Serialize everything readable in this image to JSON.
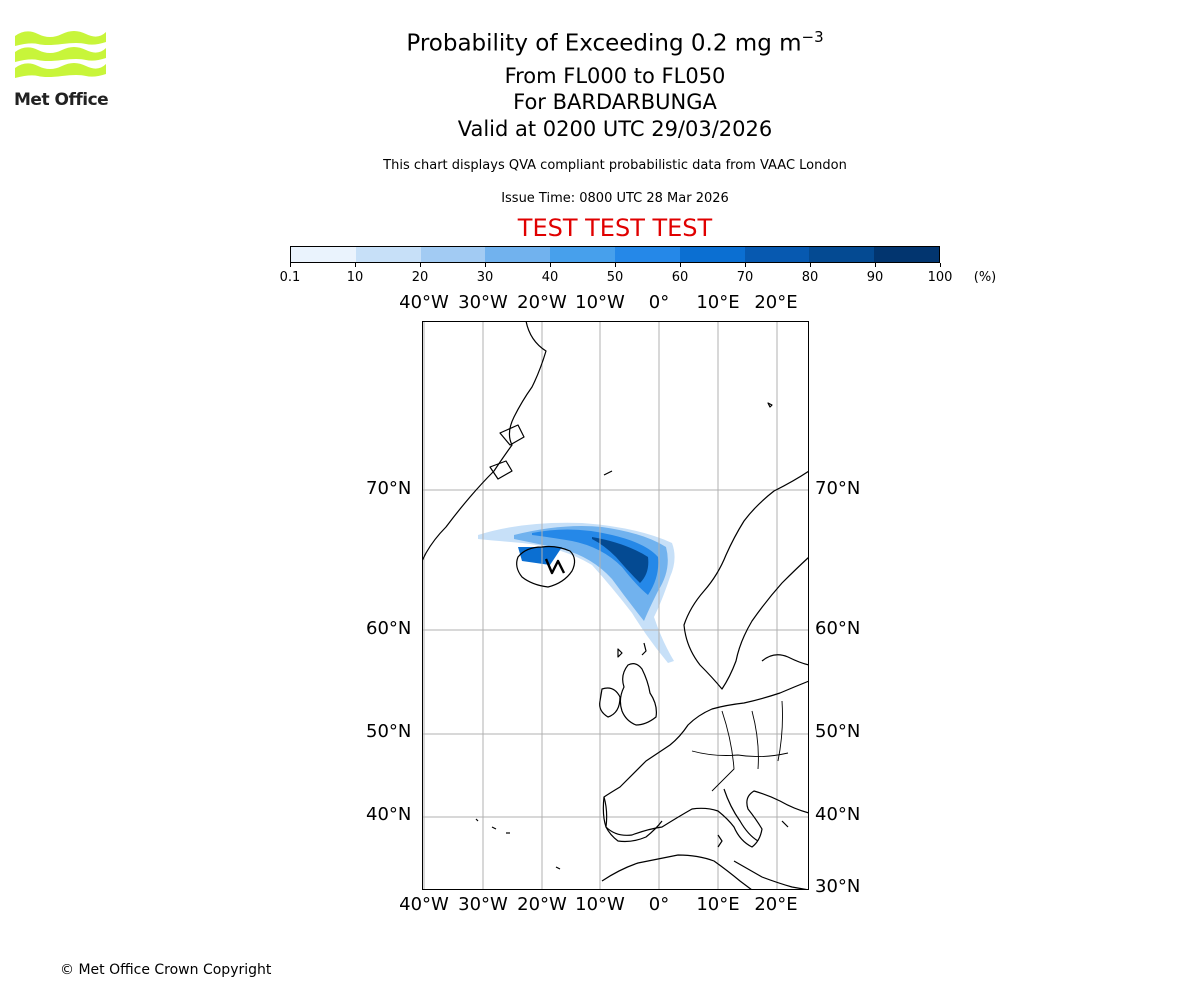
{
  "logo": {
    "text": "Met Office",
    "color": "#c8f53a"
  },
  "header": {
    "title_main": "Probability of Exceeding 0.2 mg m",
    "title_exp": "−3",
    "level_range": "From FL000 to FL050",
    "volcano": "For BARDARBUNGA",
    "valid_time": "Valid at 0200 UTC 29/03/2026",
    "description": "This chart displays QVA compliant probabilistic data from VAAC London",
    "issue_time": "Issue Time: 0800 UTC 28 Mar 2026",
    "test_banner": "TEST TEST TEST"
  },
  "colorbar": {
    "ticks": [
      "0.1",
      "10",
      "20",
      "30",
      "40",
      "50",
      "60",
      "70",
      "80",
      "90",
      "100"
    ],
    "unit": "(%)",
    "colors": [
      "#eaf3fd",
      "#c7e0f8",
      "#a2cbf3",
      "#71b2ee",
      "#47a0ec",
      "#2588e8",
      "#0b6fd2",
      "#0759b0",
      "#044a92",
      "#02356f"
    ]
  },
  "map": {
    "lon_labels": [
      "40°W",
      "30°W",
      "20°W",
      "10°W",
      "0°",
      "10°E",
      "20°E"
    ],
    "lat_labels_left": [
      "70°N",
      "60°N",
      "50°N",
      "40°N"
    ],
    "lat_labels_right": [
      "70°N",
      "60°N",
      "50°N",
      "40°N",
      "30°N"
    ],
    "gridline_color": "#b0b0b0"
  },
  "footer": {
    "copyright": "© Met Office Crown Copyright"
  }
}
